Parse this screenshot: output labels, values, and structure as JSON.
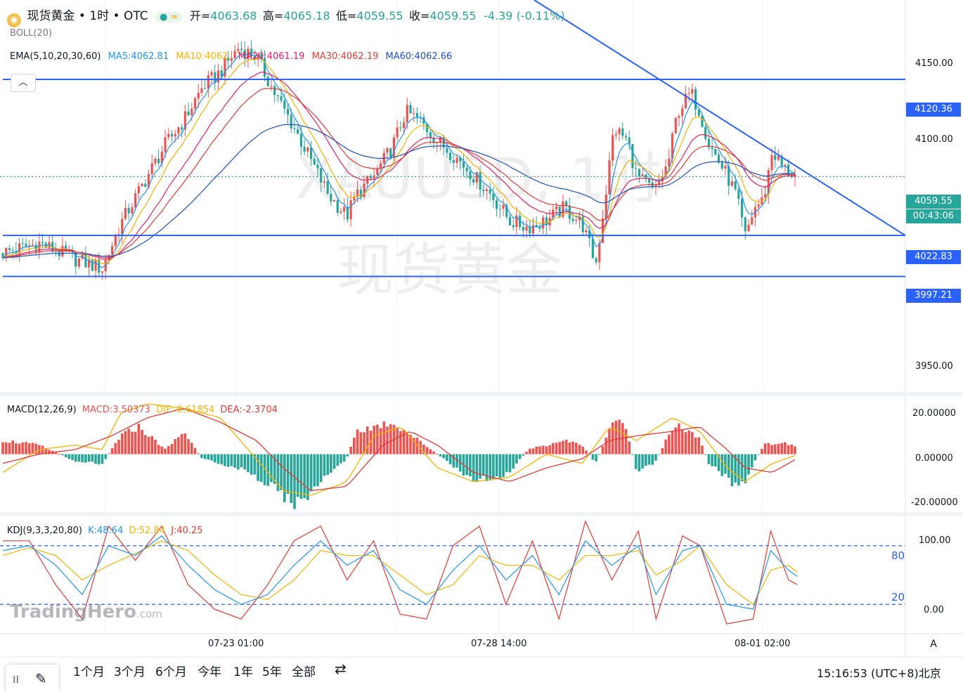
{
  "header": {
    "symbol_title": "现货黄金 • 1时 • OTC",
    "open_label": "开=",
    "open": "4063.68",
    "high_label": "高=",
    "high": "4065.18",
    "low_label": "低=",
    "low": "4059.55",
    "close_label": "收=",
    "close": "4059.55",
    "change": "-4.39 (-0.11%)"
  },
  "indicators": {
    "boll": "BOLL(20)",
    "ema_label": "EMA(5,10,20,30,60)",
    "ma5": "MA5:4062.81",
    "ma10": "MA10:4062.",
    "ma20": "MA20:4061.19",
    "ma30": "MA30:4062.19",
    "ma60": "MA60:4062.66",
    "macd_label": "MACD(12,26,9)",
    "macd": "MACD:3.50373",
    "dif": "DIF:-0.61854",
    "dea": "DEA:-2.3704",
    "kdj_label": "KDJ(9,3,3,20,80)",
    "k": "K:48.64",
    "d": "D:52.84",
    "j": "J:40.25"
  },
  "watermark": {
    "line1": "XAUUSD, 1时",
    "line2": "现货黄金"
  },
  "branding": {
    "logo": "TradingHero",
    "logo_suffix": ".com"
  },
  "price_axis": {
    "ticks": [
      "4150.00",
      "4100.00",
      "3950.00"
    ]
  },
  "price_tags": {
    "resistance": "4120.36",
    "last_price": "4059.55",
    "countdown": "00:43:06",
    "support1": "4022.83",
    "support2": "3997.21"
  },
  "macd_axis": {
    "ticks": [
      "20.00000",
      "0.00000",
      "-20.00000"
    ]
  },
  "kdj_axis": {
    "ticks": [
      "100.00",
      "0.00"
    ],
    "level_high": "80",
    "level_low": "20"
  },
  "time_axis": {
    "labels": [
      "07-23 01:00",
      "07-28 14:00",
      "08-01 02:00"
    ]
  },
  "auto_scale_label": "A",
  "toolbar": {
    "ranges": [
      "1个月",
      "3个月",
      "6个月",
      "今年",
      "1年",
      "5年",
      "全部"
    ],
    "clock": "15:16:53 (UTC+8)北京"
  },
  "colors": {
    "up": "#ef5350",
    "down": "#26a69a",
    "level": "#2962ff",
    "ma5": "#2196f3",
    "ma10": "#f5b400",
    "ma20": "#e91e63",
    "ma30": "#e53935",
    "ma60": "#1e4fc9"
  },
  "chart_data": [
    {
      "type": "candlestick",
      "title": "XAUUSD, 1时",
      "ylim": [
        3925,
        4170
      ],
      "x_ticks": [
        "07-23 01:00",
        "07-28 14:00",
        "08-01 02:00"
      ],
      "horizontal_levels": [
        4120.36,
        4022.83,
        3997.21
      ],
      "last_price": 4059.55,
      "trendline": [
        {
          "x": 0.0,
          "y": 4210
        },
        {
          "x": 1.0,
          "y": 4022.83
        }
      ],
      "close_path": [
        [
          0.0,
          4012
        ],
        [
          0.04,
          4018
        ],
        [
          0.08,
          4008
        ],
        [
          0.11,
          4002
        ],
        [
          0.13,
          4030
        ],
        [
          0.16,
          4060
        ],
        [
          0.18,
          4080
        ],
        [
          0.2,
          4095
        ],
        [
          0.22,
          4115
        ],
        [
          0.24,
          4125
        ],
        [
          0.26,
          4140
        ],
        [
          0.28,
          4135
        ],
        [
          0.3,
          4112
        ],
        [
          0.32,
          4092
        ],
        [
          0.34,
          4070
        ],
        [
          0.36,
          4048
        ],
        [
          0.38,
          4035
        ],
        [
          0.39,
          4048
        ],
        [
          0.41,
          4060
        ],
        [
          0.43,
          4078
        ],
        [
          0.445,
          4100
        ],
        [
          0.46,
          4095
        ],
        [
          0.48,
          4082
        ],
        [
          0.5,
          4072
        ],
        [
          0.52,
          4060
        ],
        [
          0.54,
          4048
        ],
        [
          0.56,
          4032
        ],
        [
          0.58,
          4028
        ],
        [
          0.6,
          4032
        ],
        [
          0.62,
          4040
        ],
        [
          0.64,
          4030
        ],
        [
          0.655,
          4005
        ],
        [
          0.665,
          4045
        ],
        [
          0.675,
          4090
        ],
        [
          0.69,
          4082
        ],
        [
          0.7,
          4060
        ],
        [
          0.72,
          4050
        ],
        [
          0.735,
          4068
        ],
        [
          0.745,
          4100
        ],
        [
          0.76,
          4112
        ],
        [
          0.77,
          4100
        ],
        [
          0.78,
          4080
        ],
        [
          0.79,
          4070
        ],
        [
          0.8,
          4060
        ],
        [
          0.81,
          4048
        ],
        [
          0.82,
          4022
        ],
        [
          0.83,
          4040
        ],
        [
          0.84,
          4045
        ],
        [
          0.85,
          4076
        ],
        [
          0.86,
          4066
        ],
        [
          0.87,
          4062
        ],
        [
          0.875,
          4060
        ]
      ],
      "ema_series": [
        {
          "name": "MA5",
          "value": 4062.81
        },
        {
          "name": "MA10",
          "value": 4062.0
        },
        {
          "name": "MA20",
          "value": 4061.19
        },
        {
          "name": "MA30",
          "value": 4062.19
        },
        {
          "name": "MA60",
          "value": 4062.66
        }
      ]
    },
    {
      "type": "bar",
      "title": "MACD(12,26,9)",
      "ylim": [
        -25,
        25
      ],
      "values": {
        "MACD": 3.50373,
        "DIF": -0.61854,
        "DEA": -2.3704
      },
      "hist_path": [
        [
          0.0,
          6
        ],
        [
          0.04,
          4
        ],
        [
          0.08,
          -3
        ],
        [
          0.11,
          -4
        ],
        [
          0.13,
          8
        ],
        [
          0.15,
          12
        ],
        [
          0.18,
          2
        ],
        [
          0.2,
          10
        ],
        [
          0.22,
          -2
        ],
        [
          0.26,
          -6
        ],
        [
          0.3,
          -14
        ],
        [
          0.32,
          -22
        ],
        [
          0.34,
          -18
        ],
        [
          0.36,
          -8
        ],
        [
          0.38,
          -2
        ],
        [
          0.39,
          10
        ],
        [
          0.41,
          12
        ],
        [
          0.43,
          14
        ],
        [
          0.445,
          10
        ],
        [
          0.47,
          3
        ],
        [
          0.5,
          -6
        ],
        [
          0.52,
          -12
        ],
        [
          0.54,
          -10
        ],
        [
          0.56,
          -8
        ],
        [
          0.58,
          2
        ],
        [
          0.6,
          4
        ],
        [
          0.62,
          6
        ],
        [
          0.64,
          4
        ],
        [
          0.655,
          -4
        ],
        [
          0.665,
          6
        ],
        [
          0.675,
          16
        ],
        [
          0.69,
          10
        ],
        [
          0.7,
          -8
        ],
        [
          0.72,
          -4
        ],
        [
          0.735,
          8
        ],
        [
          0.745,
          12
        ],
        [
          0.76,
          10
        ],
        [
          0.77,
          6
        ],
        [
          0.78,
          -4
        ],
        [
          0.8,
          -10
        ],
        [
          0.81,
          -14
        ],
        [
          0.82,
          -12
        ],
        [
          0.83,
          -4
        ],
        [
          0.84,
          4
        ],
        [
          0.86,
          5
        ],
        [
          0.875,
          3.5
        ]
      ],
      "dif_path": [
        [
          0.0,
          -8
        ],
        [
          0.04,
          2
        ],
        [
          0.08,
          4
        ],
        [
          0.11,
          2
        ],
        [
          0.13,
          18
        ],
        [
          0.16,
          22
        ],
        [
          0.2,
          20
        ],
        [
          0.24,
          16
        ],
        [
          0.28,
          -2
        ],
        [
          0.31,
          -16
        ],
        [
          0.34,
          -18
        ],
        [
          0.38,
          -12
        ],
        [
          0.41,
          8
        ],
        [
          0.44,
          12
        ],
        [
          0.48,
          -6
        ],
        [
          0.52,
          -12
        ],
        [
          0.56,
          -10
        ],
        [
          0.6,
          0
        ],
        [
          0.64,
          -4
        ],
        [
          0.67,
          12
        ],
        [
          0.7,
          6
        ],
        [
          0.74,
          16
        ],
        [
          0.77,
          10
        ],
        [
          0.8,
          -6
        ],
        [
          0.82,
          -12
        ],
        [
          0.85,
          -4
        ],
        [
          0.875,
          -0.6
        ]
      ],
      "dea_path": [
        [
          0.0,
          -4
        ],
        [
          0.04,
          0
        ],
        [
          0.08,
          2
        ],
        [
          0.12,
          8
        ],
        [
          0.16,
          16
        ],
        [
          0.2,
          20
        ],
        [
          0.24,
          14
        ],
        [
          0.28,
          6
        ],
        [
          0.31,
          -6
        ],
        [
          0.34,
          -16
        ],
        [
          0.38,
          -14
        ],
        [
          0.42,
          4
        ],
        [
          0.45,
          10
        ],
        [
          0.48,
          4
        ],
        [
          0.52,
          -8
        ],
        [
          0.56,
          -12
        ],
        [
          0.6,
          -6
        ],
        [
          0.64,
          -2
        ],
        [
          0.67,
          6
        ],
        [
          0.7,
          8
        ],
        [
          0.74,
          10
        ],
        [
          0.77,
          12
        ],
        [
          0.8,
          2
        ],
        [
          0.82,
          -6
        ],
        [
          0.85,
          -8
        ],
        [
          0.875,
          -2.4
        ]
      ]
    },
    {
      "type": "line",
      "title": "KDJ(9,3,3,20,80)",
      "ylim": [
        -10,
        110
      ],
      "levels": [
        80,
        20
      ],
      "values": {
        "K": 48.64,
        "D": 52.84,
        "J": 40.25
      },
      "k_path": [
        [
          0.0,
          75
        ],
        [
          0.03,
          80
        ],
        [
          0.06,
          60
        ],
        [
          0.09,
          30
        ],
        [
          0.12,
          80
        ],
        [
          0.15,
          70
        ],
        [
          0.18,
          90
        ],
        [
          0.21,
          60
        ],
        [
          0.24,
          35
        ],
        [
          0.27,
          20
        ],
        [
          0.3,
          30
        ],
        [
          0.33,
          60
        ],
        [
          0.36,
          85
        ],
        [
          0.39,
          60
        ],
        [
          0.42,
          75
        ],
        [
          0.45,
          35
        ],
        [
          0.48,
          20
        ],
        [
          0.51,
          55
        ],
        [
          0.54,
          80
        ],
        [
          0.57,
          45
        ],
        [
          0.6,
          70
        ],
        [
          0.63,
          30
        ],
        [
          0.66,
          85
        ],
        [
          0.69,
          60
        ],
        [
          0.72,
          80
        ],
        [
          0.74,
          30
        ],
        [
          0.77,
          75
        ],
        [
          0.79,
          80
        ],
        [
          0.82,
          20
        ],
        [
          0.85,
          15
        ],
        [
          0.87,
          75
        ],
        [
          0.89,
          55
        ],
        [
          0.9,
          48.64
        ]
      ],
      "d_path": [
        [
          0.0,
          70
        ],
        [
          0.03,
          78
        ],
        [
          0.06,
          70
        ],
        [
          0.09,
          45
        ],
        [
          0.12,
          60
        ],
        [
          0.15,
          72
        ],
        [
          0.18,
          85
        ],
        [
          0.21,
          75
        ],
        [
          0.24,
          50
        ],
        [
          0.27,
          30
        ],
        [
          0.3,
          25
        ],
        [
          0.33,
          45
        ],
        [
          0.36,
          75
        ],
        [
          0.39,
          70
        ],
        [
          0.42,
          70
        ],
        [
          0.45,
          50
        ],
        [
          0.48,
          30
        ],
        [
          0.51,
          40
        ],
        [
          0.54,
          70
        ],
        [
          0.57,
          60
        ],
        [
          0.6,
          60
        ],
        [
          0.63,
          45
        ],
        [
          0.66,
          70
        ],
        [
          0.69,
          70
        ],
        [
          0.72,
          75
        ],
        [
          0.74,
          50
        ],
        [
          0.77,
          65
        ],
        [
          0.79,
          80
        ],
        [
          0.82,
          40
        ],
        [
          0.85,
          20
        ],
        [
          0.87,
          55
        ],
        [
          0.89,
          60
        ],
        [
          0.9,
          52.84
        ]
      ],
      "j_path": [
        [
          0.0,
          85
        ],
        [
          0.03,
          85
        ],
        [
          0.06,
          40
        ],
        [
          0.09,
          5
        ],
        [
          0.12,
          100
        ],
        [
          0.15,
          65
        ],
        [
          0.18,
          100
        ],
        [
          0.21,
          40
        ],
        [
          0.24,
          15
        ],
        [
          0.27,
          5
        ],
        [
          0.3,
          40
        ],
        [
          0.33,
          85
        ],
        [
          0.36,
          100
        ],
        [
          0.39,
          45
        ],
        [
          0.42,
          85
        ],
        [
          0.45,
          10
        ],
        [
          0.48,
          5
        ],
        [
          0.51,
          80
        ],
        [
          0.54,
          100
        ],
        [
          0.57,
          20
        ],
        [
          0.6,
          85
        ],
        [
          0.63,
          5
        ],
        [
          0.66,
          105
        ],
        [
          0.69,
          45
        ],
        [
          0.72,
          95
        ],
        [
          0.74,
          5
        ],
        [
          0.77,
          90
        ],
        [
          0.79,
          80
        ],
        [
          0.82,
          0
        ],
        [
          0.85,
          5
        ],
        [
          0.87,
          95
        ],
        [
          0.89,
          45
        ],
        [
          0.9,
          40.25
        ]
      ]
    }
  ]
}
